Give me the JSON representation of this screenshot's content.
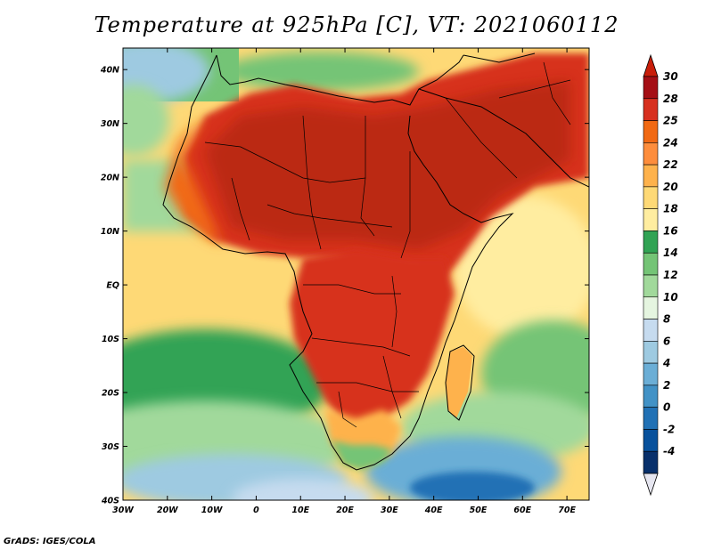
{
  "title": "Temperature at 925hPa [C], VT: 2021060112",
  "credit": "GrADS: IGES/COLA",
  "map": {
    "lat_ticks": [
      "40N",
      "30N",
      "20N",
      "10N",
      "EQ",
      "10S",
      "20S",
      "30S",
      "40S"
    ],
    "lon_ticks": [
      "30W",
      "20W",
      "10W",
      "0",
      "10E",
      "20E",
      "30E",
      "40E",
      "50E",
      "60E",
      "70E"
    ],
    "lon_range": [
      -30,
      75
    ],
    "lat_range": [
      -40,
      44
    ]
  },
  "colorbar": {
    "labels": [
      "30",
      "28",
      "25",
      "24",
      "22",
      "20",
      "18",
      "16",
      "14",
      "12",
      "10",
      "8",
      "6",
      "4",
      "2",
      "0",
      "-2",
      "-4"
    ],
    "colors": [
      "#a50f15",
      "#d7301f",
      "#f16913",
      "#fd8d3c",
      "#feb24c",
      "#fed976",
      "#ffeda0",
      "#31a354",
      "#74c476",
      "#a1d99b",
      "#e5f5e0",
      "#c6dbef",
      "#9ecae1",
      "#6baed6",
      "#4292c6",
      "#2171b5",
      "#08519c",
      "#08306b"
    ],
    "top_arrow_color": "#c81e0a",
    "bottom_arrow_color": "#e6e6f0"
  }
}
